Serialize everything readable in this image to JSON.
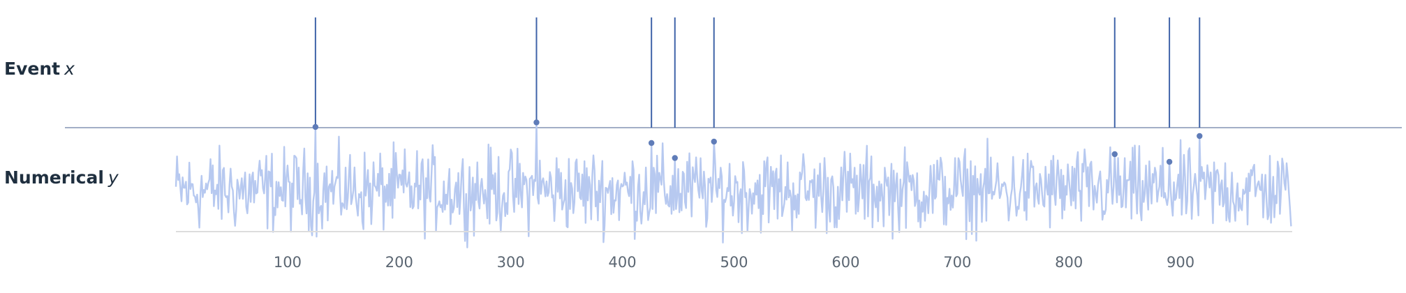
{
  "labels": {
    "event": {
      "prefix": "Event",
      "var": "x"
    },
    "numerical": {
      "prefix": "Numerical",
      "var": "y"
    }
  },
  "colors": {
    "event_line": "#3f63a8",
    "baseline": "#8494b3",
    "noise": "#b7c9f0",
    "marker": "#5f7cb8",
    "axis": "#dddddd",
    "tick_text": "#5b6672",
    "label_text": "#1f2f3f"
  },
  "chart_data": {
    "type": "line",
    "title": "",
    "xlabel": "",
    "ylabel": "",
    "xlim": [
      0,
      1000
    ],
    "xticks": [
      100,
      200,
      300,
      400,
      500,
      600,
      700,
      800,
      900
    ],
    "events": {
      "name": "Event x",
      "x": [
        125,
        323,
        426,
        447,
        482,
        841,
        890,
        917
      ]
    },
    "numerical": {
      "name": "Numerical y",
      "n_points": 1000,
      "range": [
        -1.7,
        1.7
      ],
      "peaks": [
        {
          "x": 125,
          "y": 1.82
        },
        {
          "x": 323,
          "y": 1.95
        },
        {
          "x": 426,
          "y": 1.36
        },
        {
          "x": 447,
          "y": 0.93
        },
        {
          "x": 482,
          "y": 1.4
        },
        {
          "x": 841,
          "y": 1.04
        },
        {
          "x": 890,
          "y": 0.82
        },
        {
          "x": 917,
          "y": 1.56
        }
      ]
    }
  }
}
